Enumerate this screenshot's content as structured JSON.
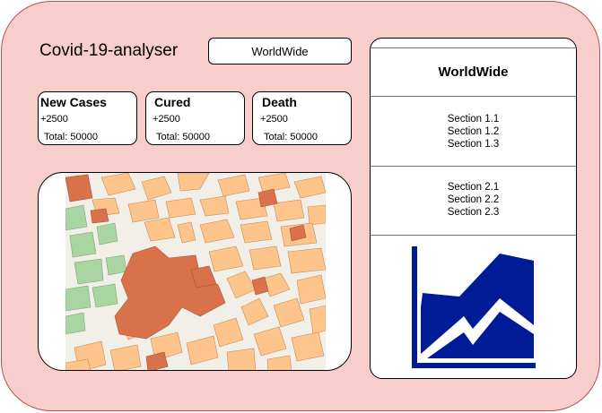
{
  "app": {
    "title": "Covid-19-analyser"
  },
  "region_select": {
    "value": "WorldWide"
  },
  "stats": [
    {
      "label": "New Cases",
      "delta": "+2500",
      "total": "Total: 50000"
    },
    {
      "label": "Cured",
      "delta": "+2500",
      "total": "Total: 50000"
    },
    {
      "label": "Death",
      "delta": "+2500",
      "total": "Total: 50000"
    }
  ],
  "map": {
    "icon": "city-map-image"
  },
  "panel": {
    "title": "WorldWide",
    "groups": [
      {
        "items": [
          "Section 1.1",
          "Section 1.2",
          "Section 1.3"
        ]
      },
      {
        "items": [
          "Section 2.1",
          "Section 2.2",
          "Section 2.3"
        ]
      }
    ],
    "chart_icon": "area-chart-icon"
  },
  "colors": {
    "app_background": "#f8cecc",
    "app_border": "#b85450",
    "map_block": "#fdc58c",
    "map_plaza": "#d9724a",
    "map_park": "#a8d5a2",
    "chart_fill": "#001b96"
  }
}
